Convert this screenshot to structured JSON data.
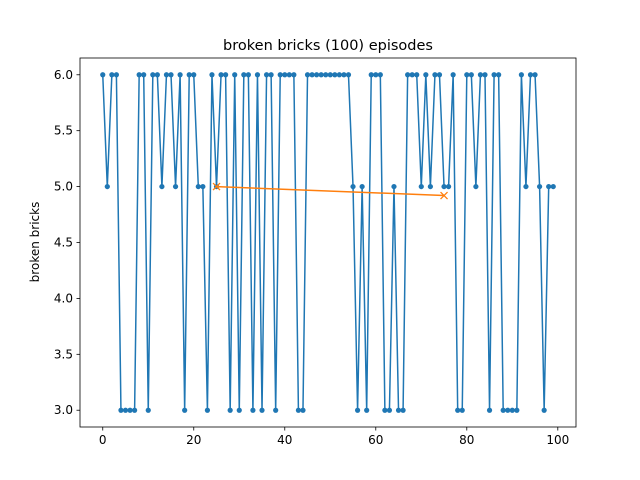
{
  "chart_data": {
    "type": "line",
    "title": "broken bricks (100) episodes",
    "xlabel": "",
    "ylabel": "broken bricks",
    "xlim": [
      -5,
      104
    ],
    "ylim": [
      2.85,
      6.15
    ],
    "xticks": [
      0,
      20,
      40,
      60,
      80,
      100
    ],
    "yticks": [
      3.0,
      3.5,
      4.0,
      4.5,
      5.0,
      5.5,
      6.0
    ],
    "xtick_labels": [
      "0",
      "20",
      "40",
      "60",
      "80",
      "100"
    ],
    "ytick_labels": [
      "3.0",
      "3.5",
      "4.0",
      "4.5",
      "5.0",
      "5.5",
      "6.0"
    ],
    "grid": false,
    "series": [
      {
        "color": "#1f77b4",
        "marker": "dot",
        "x": [
          0,
          1,
          2,
          3,
          4,
          5,
          6,
          7,
          8,
          9,
          10,
          11,
          12,
          13,
          14,
          15,
          16,
          17,
          18,
          19,
          20,
          21,
          22,
          23,
          24,
          25,
          26,
          27,
          28,
          29,
          30,
          31,
          32,
          33,
          34,
          35,
          36,
          37,
          38,
          39,
          40,
          41,
          42,
          43,
          44,
          45,
          46,
          47,
          48,
          49,
          50,
          51,
          52,
          53,
          54,
          55,
          56,
          57,
          58,
          59,
          60,
          61,
          62,
          63,
          64,
          65,
          66,
          67,
          68,
          69,
          70,
          71,
          72,
          73,
          74,
          75,
          76,
          77,
          78,
          79,
          80,
          81,
          82,
          83,
          84,
          85,
          86,
          87,
          88,
          89,
          90,
          91,
          92,
          93,
          94,
          95,
          96,
          97,
          98,
          99
        ],
        "values": [
          6,
          5,
          6,
          6,
          3,
          3,
          3,
          3,
          6,
          6,
          3,
          6,
          6,
          5,
          6,
          6,
          5,
          6,
          3,
          6,
          6,
          5,
          5,
          3,
          6,
          5,
          6,
          6,
          3,
          6,
          3,
          6,
          6,
          3,
          6,
          3,
          6,
          6,
          3,
          6,
          6,
          6,
          6,
          3,
          3,
          6,
          6,
          6,
          6,
          6,
          6,
          6,
          6,
          6,
          6,
          5,
          3,
          5,
          3,
          6,
          6,
          6,
          3,
          3,
          5,
          3,
          3,
          6,
          6,
          6,
          5,
          6,
          5,
          6,
          6,
          5,
          5,
          6,
          3,
          3,
          6,
          6,
          5,
          6,
          6,
          3,
          6,
          6,
          3,
          3,
          3,
          3,
          6,
          5,
          6,
          6,
          5,
          3,
          5,
          5
        ]
      },
      {
        "color": "#ff7f0e",
        "marker": "x",
        "x": [
          25,
          75
        ],
        "values": [
          5.0,
          4.92
        ]
      }
    ]
  }
}
